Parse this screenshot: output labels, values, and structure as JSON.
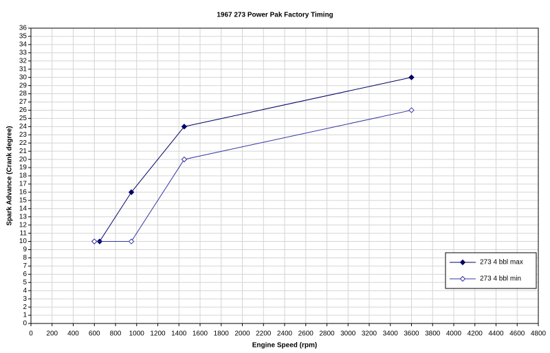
{
  "chart_data": {
    "type": "line",
    "title": "1967 273 Power Pak Factory Timing",
    "xlabel": "Engine Speed (rpm)",
    "ylabel": "Spark Advance (Crank degree)",
    "series": [
      {
        "name": "273 4 bbl max",
        "color": "#000066",
        "marker_filled": true,
        "x": [
          600,
          650,
          950,
          1450,
          3600
        ],
        "values": [
          10,
          10,
          16,
          24,
          30
        ]
      },
      {
        "name": "273 4 bbl min",
        "color": "#3333a0",
        "marker_filled": false,
        "x": [
          600,
          950,
          1450,
          3600
        ],
        "values": [
          10,
          10,
          20,
          26
        ]
      }
    ],
    "xlim": [
      0,
      4800
    ],
    "xticks": [
      0,
      200,
      400,
      600,
      800,
      1000,
      1200,
      1400,
      1600,
      1800,
      2000,
      2200,
      2400,
      2600,
      2800,
      3000,
      3200,
      3400,
      3600,
      3800,
      4000,
      4200,
      4400,
      4600,
      4800
    ],
    "ylim": [
      0,
      36
    ],
    "yticks": [
      0,
      1,
      2,
      3,
      4,
      5,
      6,
      7,
      8,
      9,
      10,
      11,
      12,
      13,
      14,
      15,
      16,
      17,
      18,
      19,
      20,
      21,
      22,
      23,
      24,
      25,
      26,
      27,
      28,
      29,
      30,
      31,
      32,
      33,
      34,
      35,
      36
    ],
    "grid": true,
    "legend": "lower right"
  }
}
